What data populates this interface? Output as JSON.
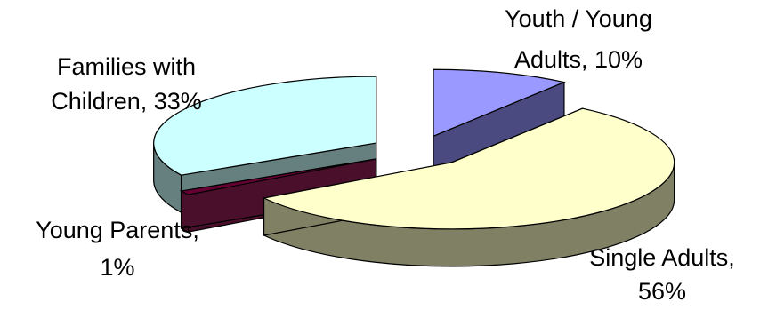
{
  "chart_data": {
    "type": "pie",
    "style": "3d-exploded",
    "series": [
      {
        "values": [
          10,
          56,
          1,
          33
        ]
      }
    ],
    "categories": [
      "Youth / Young Adults",
      "Single Adults",
      "Young Parents",
      "Families with Children"
    ],
    "slices": [
      {
        "label": "Youth / Young Adults",
        "value": 10,
        "top_color": "#9999ff",
        "side_color": "#4a4a80",
        "label_lines": [
          "Youth / Young",
          "Adults, 10%"
        ]
      },
      {
        "label": "Single Adults",
        "value": 56,
        "top_color": "#ffffcc",
        "side_color": "#808064",
        "label_lines": [
          "Single Adults,",
          "56%"
        ]
      },
      {
        "label": "Young Parents",
        "value": 1,
        "top_color": "#660033",
        "side_color": "#4a0f2a",
        "label_lines": [
          "Young Parents,",
          "1%"
        ]
      },
      {
        "label": "Families with Children",
        "value": 33,
        "top_color": "#ccffff",
        "side_color": "#668080",
        "label_lines": [
          "Families with",
          "Children, 33%"
        ]
      }
    ]
  }
}
